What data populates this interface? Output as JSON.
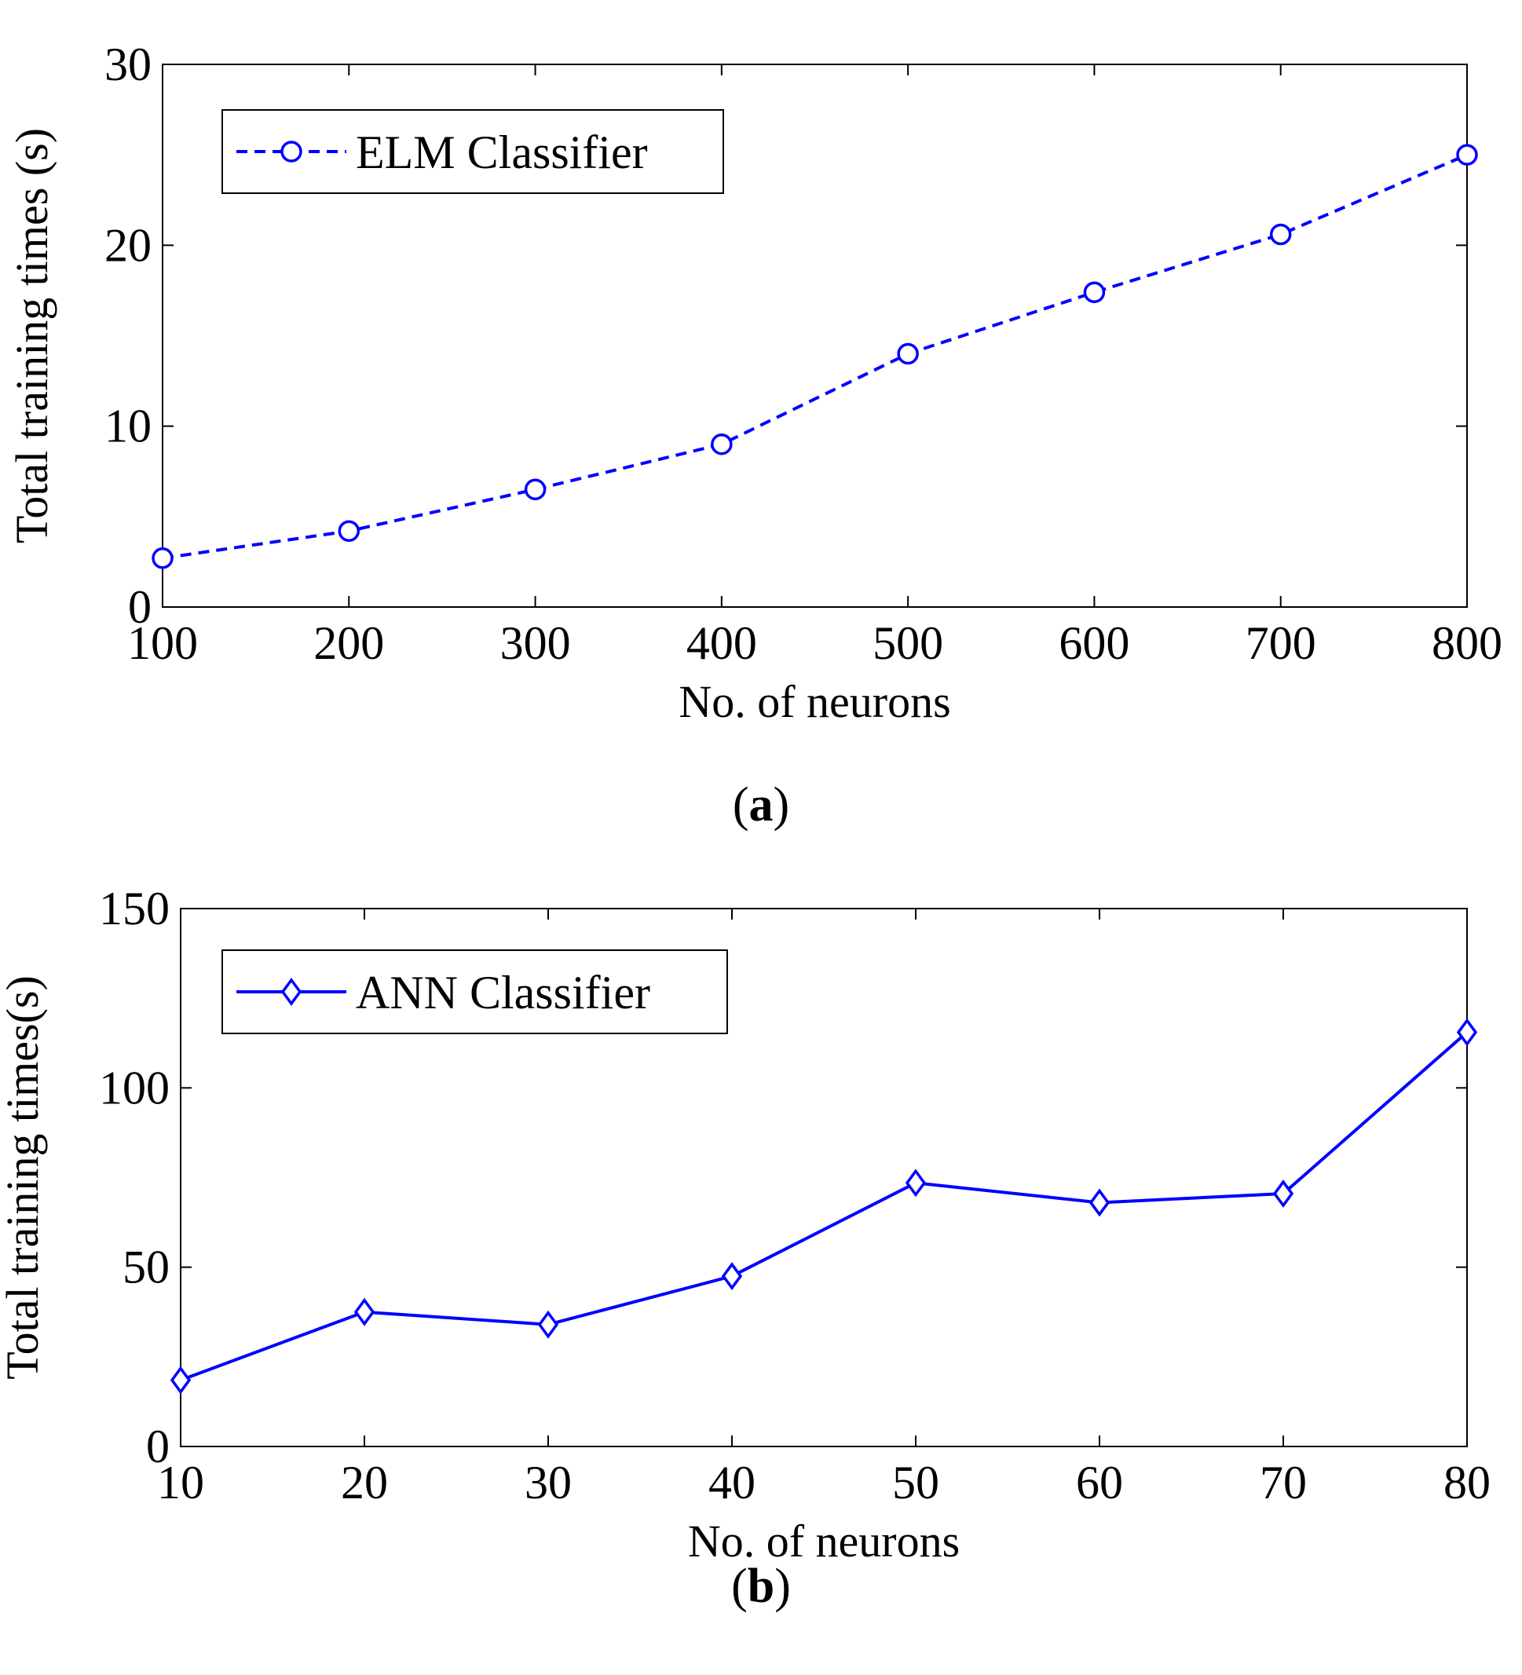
{
  "chart_data": [
    {
      "panel": "a",
      "type": "line",
      "caption": "(a)",
      "xlabel": "No. of neurons",
      "ylabel": "Total training times (s)",
      "xlim": [
        100,
        800
      ],
      "ylim": [
        0,
        30
      ],
      "xticks": [
        100,
        200,
        300,
        400,
        500,
        600,
        700,
        800
      ],
      "yticks": [
        0,
        10,
        20,
        30
      ],
      "legend_position": "top-left",
      "series": [
        {
          "name": "ELM Classifier",
          "color": "#0000ff",
          "line_style": "dashed",
          "marker": "circle",
          "x": [
            100,
            200,
            300,
            400,
            500,
            600,
            700,
            800
          ],
          "values": [
            2.7,
            4.2,
            6.5,
            9.0,
            14.0,
            17.4,
            20.6,
            25.0
          ]
        }
      ]
    },
    {
      "panel": "b",
      "type": "line",
      "caption": "(b)",
      "xlabel": "No. of neurons",
      "ylabel": "Total training times(s)",
      "xlim": [
        10,
        80
      ],
      "ylim": [
        0,
        150
      ],
      "xticks": [
        10,
        20,
        30,
        40,
        50,
        60,
        70,
        80
      ],
      "yticks": [
        0,
        50,
        100,
        150
      ],
      "legend_position": "top-left",
      "series": [
        {
          "name": "ANN Classifier",
          "color": "#0000ff",
          "line_style": "solid",
          "marker": "diamond",
          "x": [
            10,
            20,
            30,
            40,
            50,
            60,
            70,
            80
          ],
          "values": [
            18.5,
            37.5,
            34.0,
            47.5,
            73.5,
            68.0,
            70.5,
            115.5
          ]
        }
      ]
    }
  ]
}
